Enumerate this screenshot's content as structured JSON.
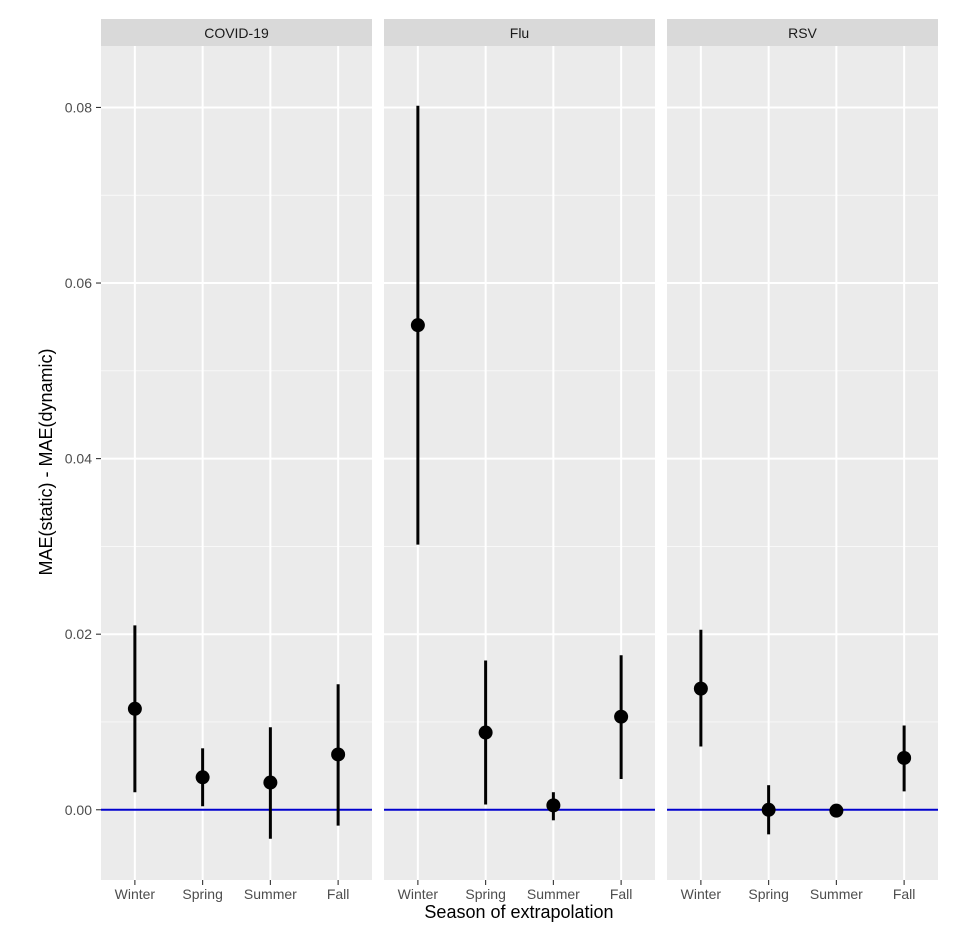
{
  "chart_data": {
    "type": "scatter",
    "title": "",
    "xlabel": "Season of extrapolation",
    "ylabel": "MAE(static) - MAE(dynamic)",
    "categories": [
      "Winter",
      "Spring",
      "Summer",
      "Fall"
    ],
    "ylim": [
      -0.008,
      0.087
    ],
    "yticks": [
      0.0,
      0.02,
      0.04,
      0.06,
      0.08
    ],
    "ytick_labels": [
      "0.00",
      "0.02",
      "0.04",
      "0.06",
      "0.08"
    ],
    "reference_line": {
      "y": 0,
      "color": "#0000cc"
    },
    "colors": {
      "panel_bg": "#ebebeb",
      "strip_bg": "#d9d9d9",
      "grid": "#ffffff",
      "point": "#000000"
    },
    "panels": [
      {
        "name": "COVID-19",
        "points": [
          {
            "x": "Winter",
            "y": 0.0115,
            "lo": 0.002,
            "hi": 0.021
          },
          {
            "x": "Spring",
            "y": 0.0037,
            "lo": 0.0004,
            "hi": 0.007
          },
          {
            "x": "Summer",
            "y": 0.0031,
            "lo": -0.0033,
            "hi": 0.0094
          },
          {
            "x": "Fall",
            "y": 0.0063,
            "lo": -0.0018,
            "hi": 0.0143
          }
        ]
      },
      {
        "name": "Flu",
        "points": [
          {
            "x": "Winter",
            "y": 0.0552,
            "lo": 0.0302,
            "hi": 0.0802
          },
          {
            "x": "Spring",
            "y": 0.0088,
            "lo": 0.0006,
            "hi": 0.017
          },
          {
            "x": "Summer",
            "y": 0.0005,
            "lo": -0.0012,
            "hi": 0.002
          },
          {
            "x": "Fall",
            "y": 0.0106,
            "lo": 0.0035,
            "hi": 0.0176
          }
        ]
      },
      {
        "name": "RSV",
        "points": [
          {
            "x": "Winter",
            "y": 0.0138,
            "lo": 0.0072,
            "hi": 0.0205
          },
          {
            "x": "Spring",
            "y": 0.0,
            "lo": -0.0028,
            "hi": 0.0028
          },
          {
            "x": "Summer",
            "y": -0.0001,
            "lo": -0.0005,
            "hi": 0.0003
          },
          {
            "x": "Fall",
            "y": 0.0059,
            "lo": 0.0021,
            "hi": 0.0096
          }
        ]
      }
    ]
  }
}
